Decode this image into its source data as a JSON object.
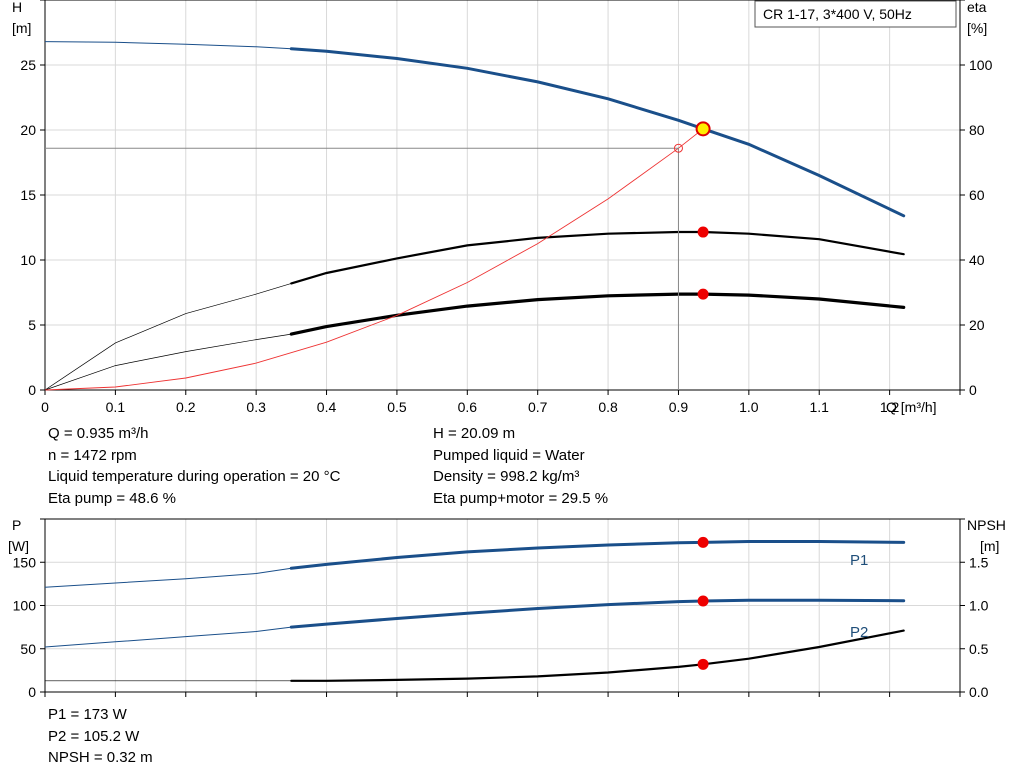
{
  "chart_data": [
    {
      "type": "line",
      "title_box": "CR 1-17, 3*400 V, 50Hz",
      "x_axis": {
        "label": "Q [m³/h]",
        "range": [
          0,
          1.3
        ],
        "ticks": [
          "0",
          "0.1",
          "0.2",
          "0.3",
          "0.4",
          "0.5",
          "0.6",
          "0.7",
          "0.8",
          "0.9",
          "1.0",
          "1.1",
          "1.2"
        ]
      },
      "y_left": {
        "label_top": "H",
        "label_unit": "[m]",
        "range": [
          0,
          30
        ],
        "ticks": [
          "0",
          "5",
          "10",
          "15",
          "20",
          "25"
        ]
      },
      "y_right": {
        "label_top": "eta",
        "label_unit": "[%]",
        "range": [
          0,
          120
        ],
        "ticks": [
          "0",
          "20",
          "40",
          "60",
          "80",
          "100"
        ]
      },
      "grid": true,
      "series": [
        {
          "axis": "left",
          "color": "#1a4f8a",
          "x": [
            0,
            0.1,
            0.2,
            0.3,
            0.35,
            0.4,
            0.5,
            0.6,
            0.7,
            0.8,
            0.9,
            0.935,
            1.0,
            1.1,
            1.22
          ],
          "y": [
            26.8,
            26.75,
            26.6,
            26.4,
            26.25,
            26.05,
            25.5,
            24.75,
            23.7,
            22.4,
            20.75,
            20.09,
            18.9,
            16.5,
            13.4
          ]
        },
        {
          "axis": "right",
          "color": "#000000",
          "x": [
            0,
            0.1,
            0.2,
            0.3,
            0.35,
            0.4,
            0.5,
            0.6,
            0.7,
            0.8,
            0.9,
            0.935,
            1.0,
            1.1,
            1.22
          ],
          "y": [
            0,
            14.5,
            23.5,
            29.5,
            32.8,
            36.0,
            40.5,
            44.5,
            46.8,
            48.1,
            48.6,
            48.6,
            48.1,
            46.4,
            41.8
          ]
        },
        {
          "axis": "right",
          "color": "#000000",
          "x": [
            0,
            0.1,
            0.2,
            0.3,
            0.35,
            0.4,
            0.5,
            0.6,
            0.7,
            0.8,
            0.9,
            0.935,
            1.0,
            1.1,
            1.22
          ],
          "y": [
            0,
            7.5,
            11.8,
            15.5,
            17.2,
            19.5,
            23.0,
            25.8,
            27.8,
            29.0,
            29.5,
            29.5,
            29.2,
            28.0,
            25.4
          ]
        },
        {
          "axis": "left",
          "color": "#ee3333",
          "x": [
            0,
            0.1,
            0.2,
            0.3,
            0.4,
            0.5,
            0.6,
            0.7,
            0.8,
            0.9,
            0.935
          ],
          "y": [
            0,
            0.23,
            0.92,
            2.07,
            3.68,
            5.74,
            8.27,
            11.26,
            14.7,
            18.6,
            20.09
          ]
        }
      ],
      "markers": [
        {
          "axis": "left",
          "x": 0.935,
          "y": 20.09,
          "style": "operating-point"
        },
        {
          "axis": "right",
          "x": 0.935,
          "y": 48.6,
          "style": "dot"
        },
        {
          "axis": "right",
          "x": 0.935,
          "y": 29.5,
          "style": "dot"
        },
        {
          "axis": "left",
          "x": 0.9,
          "y": 18.6,
          "style": "open"
        }
      ],
      "guide": {
        "x": 0.9,
        "y": 18.6
      }
    },
    {
      "type": "line",
      "x_axis": {
        "range": [
          0,
          1.3
        ]
      },
      "y_left": {
        "label_top": "P",
        "label_unit": "[W]",
        "range": [
          0,
          200
        ],
        "ticks": [
          "0",
          "50",
          "100",
          "150"
        ]
      },
      "y_right": {
        "label_top": "NPSH",
        "label_unit": "[m]",
        "range": [
          0,
          2
        ],
        "ticks": [
          "0.0",
          "0.5",
          "1.0",
          "1.5"
        ]
      },
      "grid": true,
      "series": [
        {
          "name": "P1",
          "axis": "left",
          "color": "#1a4f8a",
          "x": [
            0,
            0.1,
            0.2,
            0.3,
            0.35,
            0.4,
            0.5,
            0.6,
            0.7,
            0.8,
            0.9,
            0.935,
            1.0,
            1.1,
            1.22
          ],
          "y": [
            121,
            126,
            131,
            137,
            143,
            147.5,
            155.5,
            162,
            166.5,
            170,
            172.5,
            173,
            174,
            174,
            173
          ]
        },
        {
          "name": "P2",
          "axis": "left",
          "color": "#1a4f8a",
          "x": [
            0,
            0.1,
            0.2,
            0.3,
            0.35,
            0.4,
            0.5,
            0.6,
            0.7,
            0.8,
            0.9,
            0.935,
            1.0,
            1.1,
            1.22
          ],
          "y": [
            52,
            58,
            64,
            70,
            75,
            78.5,
            85,
            91,
            96.5,
            101,
            104.5,
            105.2,
            106,
            106,
            105.5
          ]
        },
        {
          "axis": "right",
          "color": "#000000",
          "x": [
            0,
            0.1,
            0.2,
            0.3,
            0.35,
            0.4,
            0.5,
            0.6,
            0.7,
            0.8,
            0.9,
            0.935,
            1.0,
            1.1,
            1.22
          ],
          "y": [
            0.13,
            0.13,
            0.13,
            0.13,
            0.13,
            0.13,
            0.14,
            0.155,
            0.18,
            0.225,
            0.29,
            0.32,
            0.385,
            0.52,
            0.71
          ]
        }
      ],
      "markers": [
        {
          "axis": "left",
          "x": 0.935,
          "y": 173,
          "style": "dot"
        },
        {
          "axis": "left",
          "x": 0.935,
          "y": 105.2,
          "style": "dot"
        },
        {
          "axis": "right",
          "x": 0.935,
          "y": 0.32,
          "style": "dot"
        }
      ]
    }
  ],
  "info_top_left": [
    "Q = 0.935 m³/h",
    "n = 1472 rpm",
    "Liquid temperature during operation = 20 °C",
    "Eta pump = 48.6 %"
  ],
  "info_top_right": [
    "H = 20.09 m",
    "Pumped liquid = Water",
    "Density = 998.2 kg/m³",
    "Eta pump+motor = 29.5 %"
  ],
  "info_bottom": [
    "P1 = 173 W",
    "P2 = 105.2 W",
    "NPSH = 0.32 m"
  ]
}
